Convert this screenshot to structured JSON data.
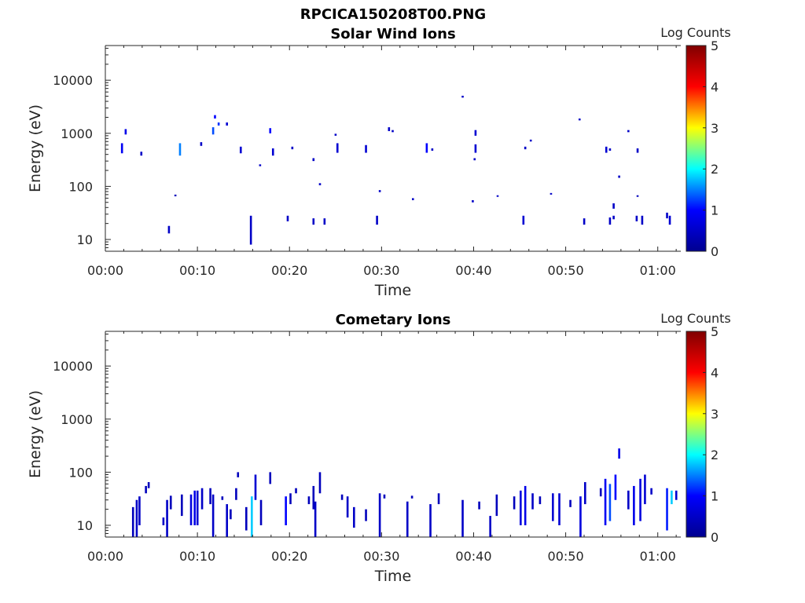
{
  "figure_title": "RPCICA150208T00.PNG",
  "colors": {
    "colormap": [
      "#00008f",
      "#0000ff",
      "#00ffff",
      "#ffff00",
      "#ff0000",
      "#800000"
    ],
    "axis": "#262626"
  },
  "chart_data": [
    {
      "type": "heatmap",
      "title": "Solar Wind Ions",
      "xlabel": "Time",
      "ylabel": "Energy (eV)",
      "x_ticks": [
        "00:00",
        "00:10",
        "00:20",
        "00:30",
        "00:40",
        "00:50",
        "01:00"
      ],
      "x_tick_minutes": [
        0,
        10,
        20,
        30,
        40,
        50,
        60
      ],
      "xlim_minutes": [
        0,
        62.5
      ],
      "y_scale": "log",
      "y_ticks": [
        "10",
        "100",
        "1000",
        "10000"
      ],
      "y_tick_values": [
        10,
        100,
        1000,
        10000
      ],
      "ylim": [
        6,
        45000
      ],
      "colorbar": {
        "label": "Log Counts",
        "range": [
          0,
          5
        ],
        "ticks": [
          "0",
          "1",
          "2",
          "3",
          "4",
          "5"
        ],
        "tick_values": [
          0,
          1,
          2,
          3,
          4,
          5
        ]
      },
      "points": [
        {
          "t": 1.8,
          "e1": 420,
          "e2": 650,
          "c": 0.9
        },
        {
          "t": 2.2,
          "e1": 950,
          "e2": 1200,
          "c": 0.8
        },
        {
          "t": 3.9,
          "e1": 380,
          "e2": 450,
          "c": 0.5
        },
        {
          "t": 6.9,
          "e1": 13,
          "e2": 18,
          "c": 0.5
        },
        {
          "t": 7.6,
          "e1": 65,
          "e2": 70,
          "c": 0.4
        },
        {
          "t": 8.1,
          "e1": 380,
          "e2": 650,
          "c": 1.5
        },
        {
          "t": 10.4,
          "e1": 580,
          "e2": 680,
          "c": 0.5
        },
        {
          "t": 11.7,
          "e1": 950,
          "e2": 1300,
          "c": 1.3
        },
        {
          "t": 11.9,
          "e1": 1900,
          "e2": 2200,
          "c": 1.0
        },
        {
          "t": 12.3,
          "e1": 1400,
          "e2": 1600,
          "c": 1.2
        },
        {
          "t": 13.2,
          "e1": 1400,
          "e2": 1600,
          "c": 0.6
        },
        {
          "t": 14.7,
          "e1": 420,
          "e2": 560,
          "c": 0.6
        },
        {
          "t": 15.8,
          "e1": 8,
          "e2": 28,
          "c": 0.5
        },
        {
          "t": 16.8,
          "e1": 240,
          "e2": 260,
          "c": 0.5
        },
        {
          "t": 17.9,
          "e1": 1000,
          "e2": 1250,
          "c": 1.0
        },
        {
          "t": 18.2,
          "e1": 380,
          "e2": 520,
          "c": 0.6
        },
        {
          "t": 19.8,
          "e1": 22,
          "e2": 28,
          "c": 0.5
        },
        {
          "t": 20.3,
          "e1": 500,
          "e2": 560,
          "c": 0.5
        },
        {
          "t": 22.6,
          "e1": 19,
          "e2": 25,
          "c": 0.5
        },
        {
          "t": 22.6,
          "e1": 300,
          "e2": 340,
          "c": 0.5
        },
        {
          "t": 23.3,
          "e1": 105,
          "e2": 115,
          "c": 0.5
        },
        {
          "t": 23.8,
          "e1": 19,
          "e2": 25,
          "c": 0.5
        },
        {
          "t": 25.2,
          "e1": 430,
          "e2": 650,
          "c": 0.6
        },
        {
          "t": 25.0,
          "e1": 900,
          "e2": 980,
          "c": 0.5
        },
        {
          "t": 28.3,
          "e1": 430,
          "e2": 600,
          "c": 0.6
        },
        {
          "t": 29.5,
          "e1": 19,
          "e2": 28,
          "c": 0.5
        },
        {
          "t": 29.8,
          "e1": 78,
          "e2": 85,
          "c": 0.5
        },
        {
          "t": 30.8,
          "e1": 1100,
          "e2": 1300,
          "c": 0.5
        },
        {
          "t": 31.2,
          "e1": 1050,
          "e2": 1150,
          "c": 0.5
        },
        {
          "t": 33.4,
          "e1": 55,
          "e2": 60,
          "c": 0.5
        },
        {
          "t": 34.9,
          "e1": 430,
          "e2": 650,
          "c": 1.0
        },
        {
          "t": 35.5,
          "e1": 470,
          "e2": 520,
          "c": 0.5
        },
        {
          "t": 38.8,
          "e1": 4700,
          "e2": 5100,
          "c": 0.5
        },
        {
          "t": 39.9,
          "e1": 50,
          "e2": 55,
          "c": 0.5
        },
        {
          "t": 40.1,
          "e1": 310,
          "e2": 340,
          "c": 0.5
        },
        {
          "t": 40.2,
          "e1": 430,
          "e2": 620,
          "c": 0.6
        },
        {
          "t": 40.2,
          "e1": 900,
          "e2": 1150,
          "c": 0.6
        },
        {
          "t": 42.6,
          "e1": 64,
          "e2": 68,
          "c": 0.5
        },
        {
          "t": 45.4,
          "e1": 19,
          "e2": 28,
          "c": 0.6
        },
        {
          "t": 45.6,
          "e1": 500,
          "e2": 560,
          "c": 0.5
        },
        {
          "t": 46.2,
          "e1": 700,
          "e2": 760,
          "c": 0.5
        },
        {
          "t": 48.4,
          "e1": 70,
          "e2": 75,
          "c": 0.5
        },
        {
          "t": 51.5,
          "e1": 1750,
          "e2": 1900,
          "c": 0.5
        },
        {
          "t": 52.0,
          "e1": 19,
          "e2": 25,
          "c": 0.5
        },
        {
          "t": 54.4,
          "e1": 430,
          "e2": 560,
          "c": 0.6
        },
        {
          "t": 54.8,
          "e1": 470,
          "e2": 520,
          "c": 0.5
        },
        {
          "t": 54.8,
          "e1": 19,
          "e2": 26,
          "c": 0.5
        },
        {
          "t": 55.2,
          "e1": 24,
          "e2": 28,
          "c": 0.5
        },
        {
          "t": 55.2,
          "e1": 38,
          "e2": 48,
          "c": 0.5
        },
        {
          "t": 55.8,
          "e1": 145,
          "e2": 160,
          "c": 0.5
        },
        {
          "t": 56.8,
          "e1": 1050,
          "e2": 1150,
          "c": 0.5
        },
        {
          "t": 57.7,
          "e1": 22,
          "e2": 28,
          "c": 0.5
        },
        {
          "t": 57.8,
          "e1": 430,
          "e2": 520,
          "c": 0.5
        },
        {
          "t": 57.8,
          "e1": 64,
          "e2": 68,
          "c": 0.4
        },
        {
          "t": 58.3,
          "e1": 19,
          "e2": 28,
          "c": 0.5
        },
        {
          "t": 61.0,
          "e1": 25,
          "e2": 32,
          "c": 0.5
        },
        {
          "t": 61.3,
          "e1": 19,
          "e2": 28,
          "c": 0.6
        }
      ]
    },
    {
      "type": "heatmap",
      "title": "Cometary Ions",
      "xlabel": "Time",
      "ylabel": "Energy (eV)",
      "x_ticks": [
        "00:00",
        "00:10",
        "00:20",
        "00:30",
        "00:40",
        "00:50",
        "01:00"
      ],
      "x_tick_minutes": [
        0,
        10,
        20,
        30,
        40,
        50,
        60
      ],
      "xlim_minutes": [
        0,
        62.5
      ],
      "y_scale": "log",
      "y_ticks": [
        "10",
        "100",
        "1000",
        "10000"
      ],
      "y_tick_values": [
        10,
        100,
        1000,
        10000
      ],
      "ylim": [
        6,
        45000
      ],
      "colorbar": {
        "label": "Log Counts",
        "range": [
          0,
          5
        ],
        "ticks": [
          "0",
          "1",
          "2",
          "3",
          "4",
          "5"
        ],
        "tick_values": [
          0,
          1,
          2,
          3,
          4,
          5
        ]
      },
      "points": [
        {
          "t": 3.0,
          "e1": 6,
          "e2": 22,
          "c": 0.4
        },
        {
          "t": 3.4,
          "e1": 6,
          "e2": 30,
          "c": 0.5
        },
        {
          "t": 3.7,
          "e1": 10,
          "e2": 35,
          "c": 0.5
        },
        {
          "t": 4.4,
          "e1": 40,
          "e2": 55,
          "c": 0.4
        },
        {
          "t": 4.7,
          "e1": 50,
          "e2": 65,
          "c": 0.4
        },
        {
          "t": 6.3,
          "e1": 10,
          "e2": 14,
          "c": 0.5
        },
        {
          "t": 6.7,
          "e1": 6,
          "e2": 30,
          "c": 0.5
        },
        {
          "t": 7.1,
          "e1": 20,
          "e2": 36,
          "c": 0.4
        },
        {
          "t": 8.3,
          "e1": 15,
          "e2": 38,
          "c": 0.4
        },
        {
          "t": 9.3,
          "e1": 10,
          "e2": 38,
          "c": 0.7
        },
        {
          "t": 9.7,
          "e1": 10,
          "e2": 45,
          "c": 0.8
        },
        {
          "t": 10.0,
          "e1": 10,
          "e2": 45,
          "c": 0.6
        },
        {
          "t": 10.5,
          "e1": 20,
          "e2": 50,
          "c": 0.5
        },
        {
          "t": 11.4,
          "e1": 25,
          "e2": 50,
          "c": 0.4
        },
        {
          "t": 11.7,
          "e1": 6,
          "e2": 38,
          "c": 0.5
        },
        {
          "t": 12.7,
          "e1": 30,
          "e2": 35,
          "c": 0.4
        },
        {
          "t": 13.2,
          "e1": 6,
          "e2": 25,
          "c": 0.5
        },
        {
          "t": 13.6,
          "e1": 13,
          "e2": 20,
          "c": 0.4
        },
        {
          "t": 14.2,
          "e1": 30,
          "e2": 50,
          "c": 0.4
        },
        {
          "t": 14.4,
          "e1": 80,
          "e2": 100,
          "c": 0.4
        },
        {
          "t": 15.3,
          "e1": 8,
          "e2": 22,
          "c": 0.4
        },
        {
          "t": 15.9,
          "e1": 6,
          "e2": 35,
          "c": 1.8
        },
        {
          "t": 16.3,
          "e1": 30,
          "e2": 90,
          "c": 0.6
        },
        {
          "t": 16.9,
          "e1": 10,
          "e2": 30,
          "c": 0.4
        },
        {
          "t": 17.9,
          "e1": 60,
          "e2": 100,
          "c": 0.4
        },
        {
          "t": 19.6,
          "e1": 10,
          "e2": 35,
          "c": 1.0
        },
        {
          "t": 20.1,
          "e1": 25,
          "e2": 40,
          "c": 0.4
        },
        {
          "t": 20.7,
          "e1": 40,
          "e2": 50,
          "c": 0.4
        },
        {
          "t": 22.1,
          "e1": 25,
          "e2": 35,
          "c": 0.4
        },
        {
          "t": 22.6,
          "e1": 20,
          "e2": 55,
          "c": 0.4
        },
        {
          "t": 22.8,
          "e1": 6,
          "e2": 28,
          "c": 0.5
        },
        {
          "t": 23.3,
          "e1": 40,
          "e2": 100,
          "c": 0.4
        },
        {
          "t": 25.7,
          "e1": 30,
          "e2": 38,
          "c": 0.4
        },
        {
          "t": 26.3,
          "e1": 14,
          "e2": 35,
          "c": 0.5
        },
        {
          "t": 27.0,
          "e1": 9,
          "e2": 22,
          "c": 0.5
        },
        {
          "t": 28.3,
          "e1": 12,
          "e2": 20,
          "c": 0.4
        },
        {
          "t": 29.8,
          "e1": 6,
          "e2": 40,
          "c": 0.5
        },
        {
          "t": 30.3,
          "e1": 32,
          "e2": 38,
          "c": 0.4
        },
        {
          "t": 32.8,
          "e1": 6,
          "e2": 28,
          "c": 0.5
        },
        {
          "t": 33.3,
          "e1": 32,
          "e2": 36,
          "c": 0.4
        },
        {
          "t": 35.3,
          "e1": 6,
          "e2": 25,
          "c": 0.5
        },
        {
          "t": 36.2,
          "e1": 25,
          "e2": 40,
          "c": 0.4
        },
        {
          "t": 38.8,
          "e1": 6,
          "e2": 30,
          "c": 0.5
        },
        {
          "t": 40.6,
          "e1": 20,
          "e2": 28,
          "c": 0.4
        },
        {
          "t": 41.8,
          "e1": 6,
          "e2": 15,
          "c": 0.5
        },
        {
          "t": 42.5,
          "e1": 15,
          "e2": 38,
          "c": 0.4
        },
        {
          "t": 44.4,
          "e1": 20,
          "e2": 35,
          "c": 0.4
        },
        {
          "t": 45.1,
          "e1": 10,
          "e2": 45,
          "c": 0.7
        },
        {
          "t": 45.6,
          "e1": 10,
          "e2": 55,
          "c": 0.8
        },
        {
          "t": 46.4,
          "e1": 20,
          "e2": 40,
          "c": 0.5
        },
        {
          "t": 47.2,
          "e1": 25,
          "e2": 35,
          "c": 0.4
        },
        {
          "t": 48.6,
          "e1": 12,
          "e2": 40,
          "c": 0.6
        },
        {
          "t": 49.3,
          "e1": 10,
          "e2": 40,
          "c": 0.6
        },
        {
          "t": 50.5,
          "e1": 22,
          "e2": 30,
          "c": 0.4
        },
        {
          "t": 51.6,
          "e1": 6,
          "e2": 35,
          "c": 0.7
        },
        {
          "t": 52.1,
          "e1": 25,
          "e2": 65,
          "c": 0.5
        },
        {
          "t": 53.8,
          "e1": 35,
          "e2": 50,
          "c": 0.4
        },
        {
          "t": 54.3,
          "e1": 10,
          "e2": 75,
          "c": 0.9
        },
        {
          "t": 54.8,
          "e1": 12,
          "e2": 60,
          "c": 1.3
        },
        {
          "t": 55.4,
          "e1": 30,
          "e2": 90,
          "c": 1.0
        },
        {
          "t": 55.8,
          "e1": 180,
          "e2": 280,
          "c": 0.8
        },
        {
          "t": 56.8,
          "e1": 20,
          "e2": 45,
          "c": 0.5
        },
        {
          "t": 57.4,
          "e1": 10,
          "e2": 55,
          "c": 0.8
        },
        {
          "t": 58.1,
          "e1": 12,
          "e2": 75,
          "c": 0.7
        },
        {
          "t": 58.6,
          "e1": 25,
          "e2": 90,
          "c": 0.6
        },
        {
          "t": 59.3,
          "e1": 38,
          "e2": 50,
          "c": 0.5
        },
        {
          "t": 61.0,
          "e1": 8,
          "e2": 50,
          "c": 1.1
        },
        {
          "t": 61.5,
          "e1": 25,
          "e2": 45,
          "c": 1.8
        },
        {
          "t": 62.0,
          "e1": 30,
          "e2": 45,
          "c": 0.6
        }
      ]
    }
  ]
}
